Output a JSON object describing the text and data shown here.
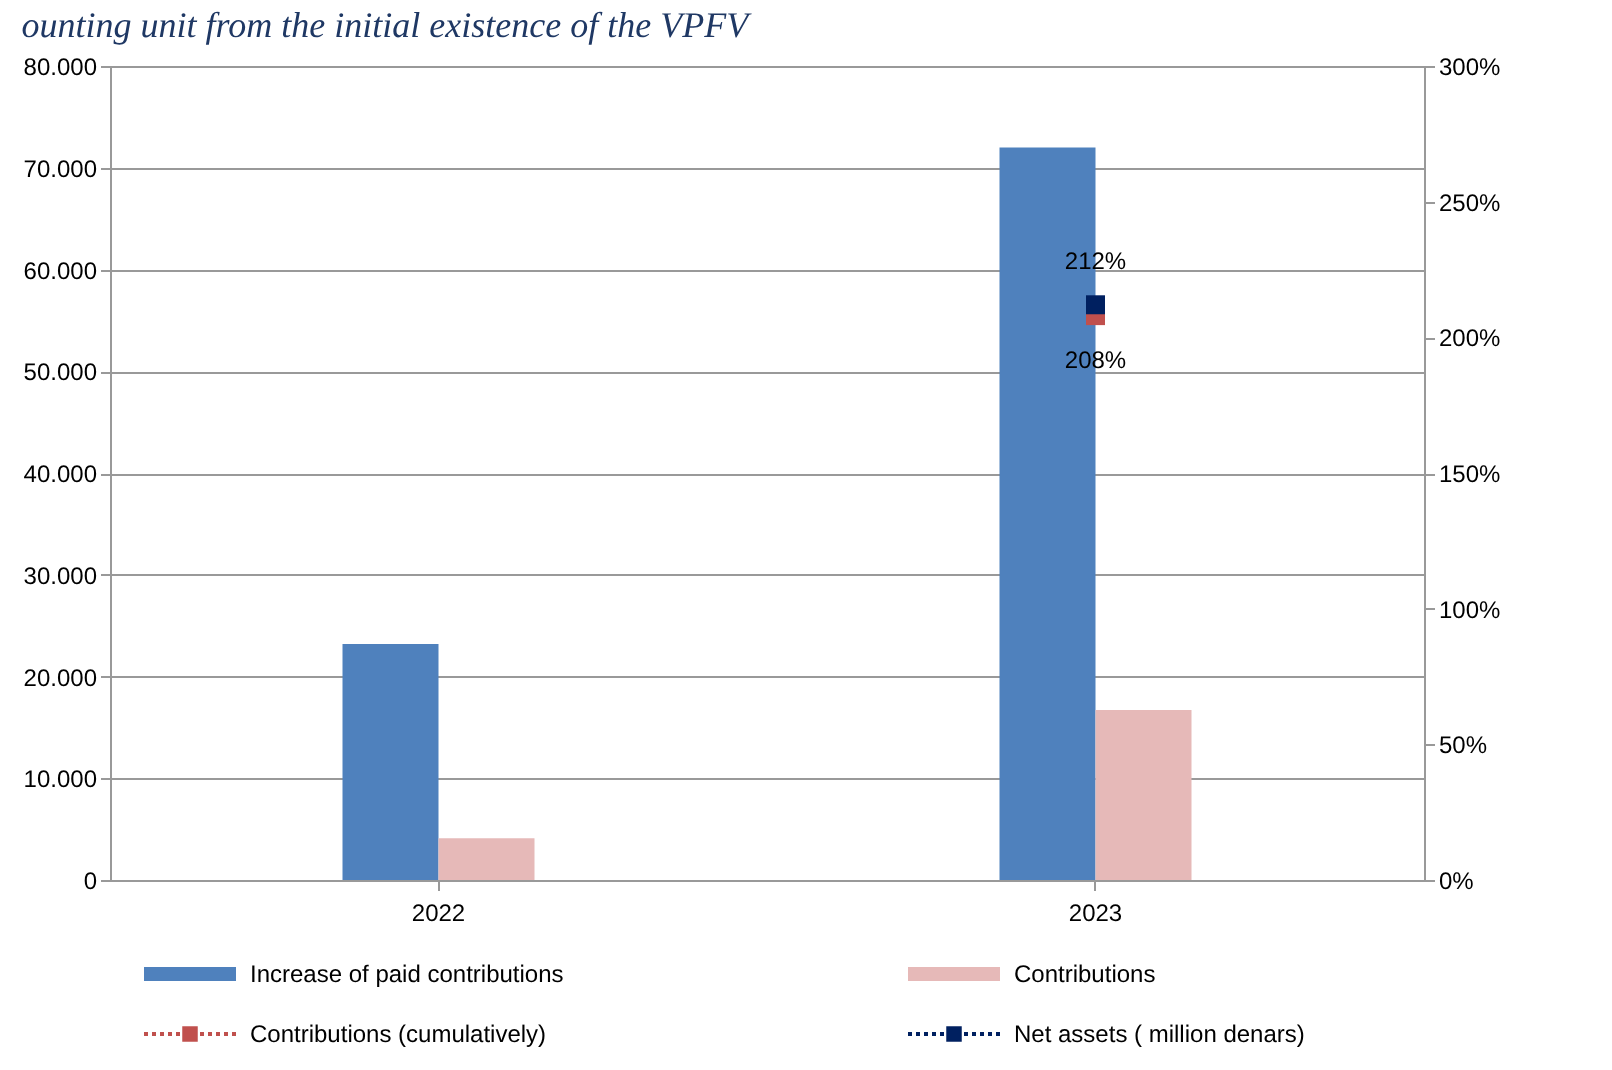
{
  "chart_data": {
    "type": "bar",
    "title": "ounting unit from the initial existence of the VPFV",
    "categories": [
      "2022",
      "2023"
    ],
    "series": [
      {
        "name": "Increase of paid contributions",
        "color": "#4f81bd",
        "values": [
          23200,
          72000
        ]
      },
      {
        "name": "Contributions",
        "color": "#e6b9b8",
        "values": [
          4100,
          16700
        ]
      },
      {
        "name": "Contributions (cumulatively)",
        "type": "line",
        "axis": "y2",
        "color": "#c0504d",
        "values": [
          null,
          208
        ],
        "value_labels": [
          null,
          "208%"
        ],
        "marker": "square",
        "line_style": "dotted"
      },
      {
        "name": "Net assets ( million denars)",
        "type": "line",
        "axis": "y2",
        "color": "#002060",
        "values": [
          null,
          212
        ],
        "value_labels": [
          null,
          "212%"
        ],
        "marker": "square",
        "line_style": "dotted"
      }
    ],
    "ylim": [
      0,
      80000
    ],
    "yticks": [
      0,
      {
        "value": 10000,
        "label": "10.000"
      },
      {
        "value": 20000,
        "label": "20.000"
      },
      {
        "value": 30000,
        "label": "30.000"
      },
      {
        "value": 40000,
        "label": "40.000"
      },
      {
        "value": 50000,
        "label": "50.000"
      },
      {
        "value": 60000,
        "label": "60.000"
      },
      {
        "value": 70000,
        "label": "70.000"
      },
      {
        "value": 80000,
        "label": "80.000"
      }
    ],
    "y2lim": [
      0,
      300
    ],
    "y2ticks": [
      {
        "value": 0,
        "label": "0%"
      },
      {
        "value": 50,
        "label": "50%"
      },
      {
        "value": 100,
        "label": "100%"
      },
      {
        "value": 150,
        "label": "150%"
      },
      {
        "value": 200,
        "label": "200%"
      },
      {
        "value": 250,
        "label": "250%"
      },
      {
        "value": 300,
        "label": "300%"
      }
    ],
    "grid": "y",
    "legend": "bottom"
  }
}
